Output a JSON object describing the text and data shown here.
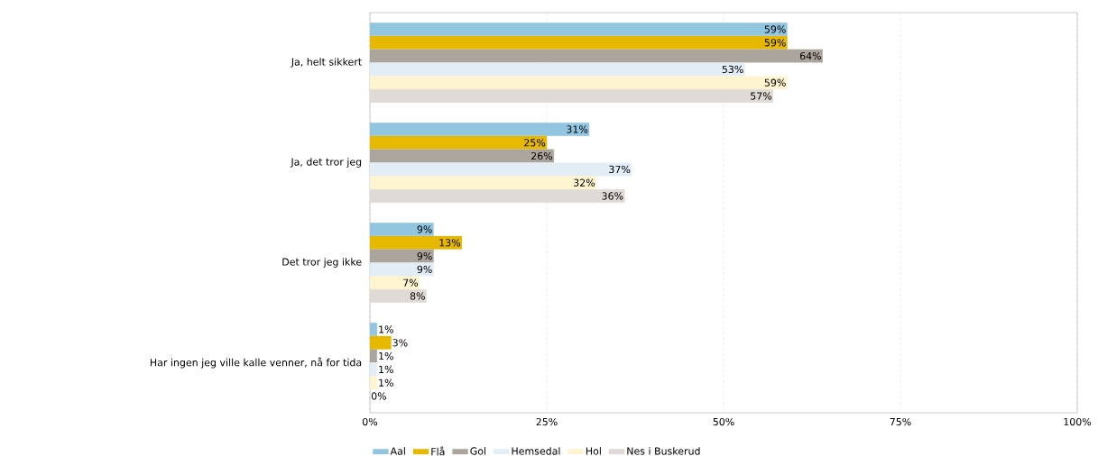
{
  "chart_data": {
    "type": "bar",
    "orientation": "horizontal",
    "categories": [
      "Ja, helt sikkert",
      "Ja, det tror jeg",
      "Det tror jeg ikke",
      "Har ingen jeg ville kalle venner, nå for tida"
    ],
    "series": [
      {
        "name": "Aal",
        "color": "#92c5e0",
        "values": [
          59,
          31,
          9,
          1
        ],
        "value_labels": [
          "59%",
          "31%",
          "9%",
          "1%"
        ]
      },
      {
        "name": "Flå",
        "color": "#e6b800",
        "values": [
          59,
          25,
          13,
          3
        ],
        "value_labels": [
          "59%",
          "25%",
          "13%",
          "3%"
        ]
      },
      {
        "name": "Gol",
        "color": "#aca59d",
        "values": [
          64,
          26,
          9,
          1
        ],
        "value_labels": [
          "64%",
          "26%",
          "9%",
          "1%"
        ]
      },
      {
        "name": "Hemsedal",
        "color": "#e3edf6",
        "values": [
          53,
          37,
          9,
          1
        ],
        "value_labels": [
          "53%",
          "37%",
          "9%",
          "1%"
        ]
      },
      {
        "name": "Hol",
        "color": "#fef4cf",
        "values": [
          59,
          32,
          7,
          1
        ],
        "value_labels": [
          "59%",
          "32%",
          "7%",
          "1%"
        ]
      },
      {
        "name": "Nes i Buskerud",
        "color": "#e0dad6",
        "values": [
          57,
          36,
          8,
          0
        ],
        "value_labels": [
          "57%",
          "36%",
          "8%",
          "0%"
        ]
      }
    ],
    "xlim": [
      0,
      100
    ],
    "xticks": [
      {
        "value": 0,
        "label": "0%"
      },
      {
        "value": 25,
        "label": "25%"
      },
      {
        "value": 50,
        "label": "50%"
      },
      {
        "value": 75,
        "label": "75%"
      },
      {
        "value": 100,
        "label": "100%"
      }
    ],
    "grid": "x",
    "legend": "bottom"
  }
}
